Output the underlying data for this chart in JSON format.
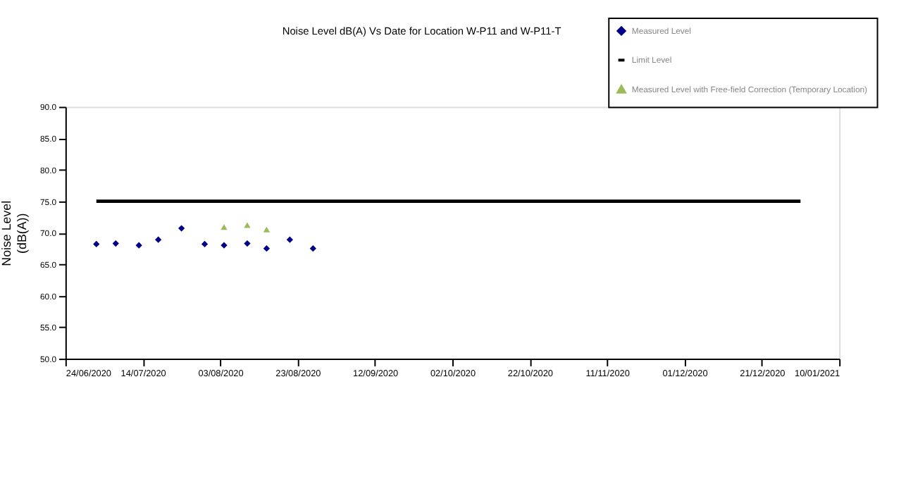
{
  "chart_data": {
    "type": "scatter",
    "title": "Noise Level dB(A) Vs Date for Location W-P11 and W-P11-T",
    "ylabel": "Noise Level\n(dB(A))",
    "series": [
      {
        "name": "Measured Level",
        "color": "#00008b",
        "marker": "diamond",
        "x": [
          "2020-07-02",
          "2020-07-07",
          "2020-07-13",
          "2020-07-18",
          "2020-07-24",
          "2020-07-30",
          "2020-08-04",
          "2020-08-10",
          "2020-08-15",
          "2020-08-21",
          "2020-08-27"
        ],
        "values": [
          68.2,
          68.3,
          68.0,
          68.9,
          70.7,
          68.2,
          68.0,
          68.3,
          67.5,
          68.9,
          67.5
        ]
      },
      {
        "name": "Limit Level",
        "type": "line",
        "color": "#000000",
        "x": [
          "2020-07-02",
          "2020-12-31"
        ],
        "values": [
          75,
          75
        ]
      },
      {
        "name": "Measured Level with Free-field Correction (Temporary Location)",
        "color": "#9bbb59",
        "marker": "triangle",
        "x": [
          "2020-08-04",
          "2020-08-10",
          "2020-08-15"
        ],
        "values": [
          70.9,
          71.2,
          70.5
        ]
      }
    ],
    "xlim": [
      "2020-06-24",
      "2021-01-10"
    ],
    "xticks": [
      {
        "value": "2020-06-24",
        "label": "24/06/2020"
      },
      {
        "value": "2020-07-14",
        "label": "14/07/2020"
      },
      {
        "value": "2020-08-03",
        "label": "03/08/2020"
      },
      {
        "value": "2020-08-23",
        "label": "23/08/2020"
      },
      {
        "value": "2020-09-12",
        "label": "12/09/2020"
      },
      {
        "value": "2020-10-02",
        "label": "02/10/2020"
      },
      {
        "value": "2020-10-22",
        "label": "22/10/2020"
      },
      {
        "value": "2020-11-11",
        "label": "11/11/2020"
      },
      {
        "value": "2020-12-01",
        "label": "01/12/2020"
      },
      {
        "value": "2020-12-21",
        "label": "21/12/2020"
      },
      {
        "value": "2021-01-10",
        "label": "10/01/2021"
      }
    ],
    "ylim": [
      50,
      90
    ],
    "yticks": [
      {
        "value": 50,
        "label": "50.0"
      },
      {
        "value": 55,
        "label": "55.0"
      },
      {
        "value": 60,
        "label": "60.0"
      },
      {
        "value": 65,
        "label": "65.0"
      },
      {
        "value": 70,
        "label": "70.0"
      },
      {
        "value": 75,
        "label": "75.0"
      },
      {
        "value": 80,
        "label": "80.0"
      },
      {
        "value": 85,
        "label": "85.0"
      },
      {
        "value": 90,
        "label": "90.0"
      }
    ],
    "grid": false,
    "legend": "top right"
  }
}
